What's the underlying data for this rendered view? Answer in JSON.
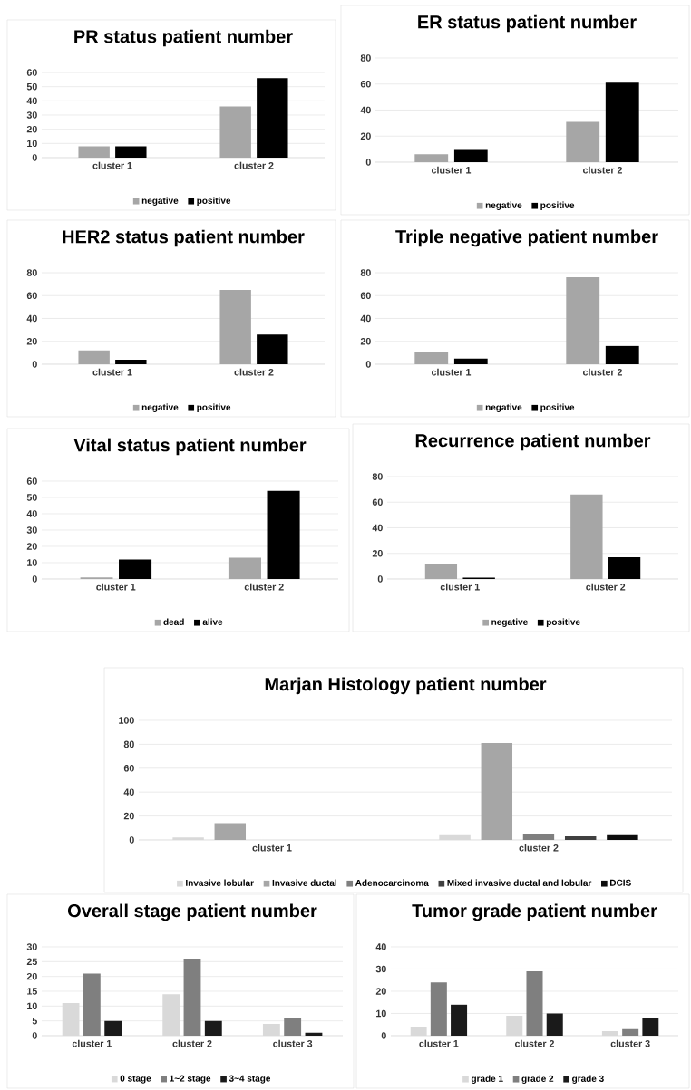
{
  "chart_data": [
    {
      "type": "bar",
      "title": "PR status patient number",
      "categories": [
        "cluster 1",
        "cluster 2"
      ],
      "series": [
        {
          "name": "negative",
          "color": "#a6a6a6",
          "values": [
            8,
            36
          ]
        },
        {
          "name": "positive",
          "color": "#000000",
          "values": [
            8,
            56
          ]
        }
      ],
      "ylim": [
        0,
        60
      ],
      "yticks": [
        0,
        10,
        20,
        30,
        40,
        50,
        60
      ],
      "grid": "y",
      "legend": "bottom"
    },
    {
      "type": "bar",
      "title": "ER status patient number",
      "categories": [
        "cluster 1",
        "cluster 2"
      ],
      "series": [
        {
          "name": "negative",
          "color": "#a6a6a6",
          "values": [
            6,
            31
          ]
        },
        {
          "name": "positive",
          "color": "#000000",
          "values": [
            10,
            61
          ]
        }
      ],
      "ylim": [
        0,
        80
      ],
      "yticks": [
        0,
        20,
        40,
        60,
        80
      ],
      "grid": "y",
      "legend": "bottom"
    },
    {
      "type": "bar",
      "title": "HER2 status patient number",
      "categories": [
        "cluster 1",
        "cluster 2"
      ],
      "series": [
        {
          "name": "negative",
          "color": "#a6a6a6",
          "values": [
            12,
            65
          ]
        },
        {
          "name": "positive",
          "color": "#000000",
          "values": [
            4,
            26
          ]
        }
      ],
      "ylim": [
        0,
        80
      ],
      "yticks": [
        0,
        20,
        40,
        60,
        80
      ],
      "grid": "y",
      "legend": "bottom"
    },
    {
      "type": "bar",
      "title": "Triple negative patient number",
      "categories": [
        "cluster 1",
        "cluster 2"
      ],
      "series": [
        {
          "name": "negative",
          "color": "#a6a6a6",
          "values": [
            11,
            76
          ]
        },
        {
          "name": "positive",
          "color": "#000000",
          "values": [
            5,
            16
          ]
        }
      ],
      "ylim": [
        0,
        80
      ],
      "yticks": [
        0,
        20,
        40,
        60,
        80
      ],
      "grid": "y",
      "legend": "bottom"
    },
    {
      "type": "bar",
      "title": "Vital status patient number",
      "categories": [
        "cluster 1",
        "cluster 2"
      ],
      "series": [
        {
          "name": "dead",
          "color": "#a6a6a6",
          "values": [
            1,
            13
          ]
        },
        {
          "name": "alive",
          "color": "#000000",
          "values": [
            12,
            54
          ]
        }
      ],
      "ylim": [
        0,
        60
      ],
      "yticks": [
        0,
        10,
        20,
        30,
        40,
        50,
        60
      ],
      "grid": "y",
      "legend": "bottom"
    },
    {
      "type": "bar",
      "title": "Recurrence patient number",
      "categories": [
        "cluster 1",
        "cluster 2"
      ],
      "series": [
        {
          "name": "negative",
          "color": "#a6a6a6",
          "values": [
            12,
            66
          ]
        },
        {
          "name": "positive",
          "color": "#000000",
          "values": [
            1,
            17
          ]
        }
      ],
      "ylim": [
        0,
        80
      ],
      "yticks": [
        0,
        20,
        40,
        60,
        80
      ],
      "grid": "y",
      "legend": "bottom"
    },
    {
      "type": "bar",
      "title": "Marjan Histology patient number",
      "categories": [
        "cluster 1",
        "cluster 2"
      ],
      "series": [
        {
          "name": "Invasive lobular",
          "color": "#d9d9d9",
          "values": [
            2,
            4
          ]
        },
        {
          "name": "Invasive ductal",
          "color": "#a6a6a6",
          "values": [
            14,
            81
          ]
        },
        {
          "name": "Adenocarcinoma",
          "color": "#7f7f7f",
          "values": [
            0,
            5
          ]
        },
        {
          "name": "Mixed invasive ductal and lobular",
          "color": "#404040",
          "values": [
            0,
            3
          ]
        },
        {
          "name": "DCIS",
          "color": "#0d0d0d",
          "values": [
            0,
            4
          ]
        }
      ],
      "ylim": [
        0,
        100
      ],
      "yticks": [
        0,
        20,
        40,
        60,
        80,
        100
      ],
      "grid": "y",
      "legend": "bottom"
    },
    {
      "type": "bar",
      "title": "Overall stage patient number",
      "categories": [
        "cluster 1",
        "cluster 2",
        "cluster 3"
      ],
      "series": [
        {
          "name": "0 stage",
          "color": "#d9d9d9",
          "values": [
            11,
            14,
            4
          ]
        },
        {
          "name": "1~2 stage",
          "color": "#7f7f7f",
          "values": [
            21,
            26,
            6
          ]
        },
        {
          "name": "3~4 stage",
          "color": "#1a1a1a",
          "values": [
            5,
            5,
            1
          ]
        }
      ],
      "ylim": [
        0,
        30
      ],
      "yticks": [
        0,
        5,
        10,
        15,
        20,
        25,
        30
      ],
      "grid": "y",
      "legend": "bottom"
    },
    {
      "type": "bar",
      "title": "Tumor grade patient number",
      "categories": [
        "cluster 1",
        "cluster 2",
        "cluster 3"
      ],
      "series": [
        {
          "name": "grade 1",
          "color": "#d9d9d9",
          "values": [
            4,
            9,
            2
          ]
        },
        {
          "name": "grade 2",
          "color": "#7f7f7f",
          "values": [
            24,
            29,
            3
          ]
        },
        {
          "name": "grade 3",
          "color": "#1a1a1a",
          "values": [
            14,
            10,
            8
          ]
        }
      ],
      "ylim": [
        0,
        40
      ],
      "yticks": [
        0,
        10,
        20,
        30,
        40
      ],
      "grid": "y",
      "legend": "bottom"
    }
  ]
}
